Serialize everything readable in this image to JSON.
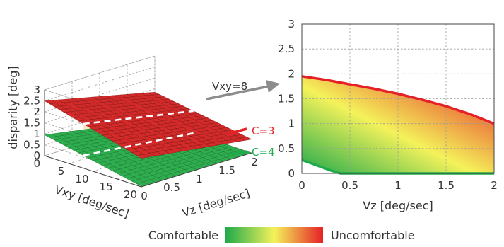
{
  "colors": {
    "comfortable": "#1faa4b",
    "mid": "#f4f25a",
    "uncomfortable": "#e52026",
    "surface_top": "#d42a2a",
    "surface_bottom": "#2fae4f"
  },
  "chart_data": [
    {
      "type": "surface3d",
      "xlabel": "Vz  [deg/sec]",
      "ylabel": "Vxy  [deg/sec]",
      "zlabel": "disparity [deg]",
      "x_ticks": [
        "0",
        "0.5",
        "1",
        "1.5",
        "2"
      ],
      "y_ticks": [
        "0",
        "5",
        "10",
        "15",
        "20"
      ],
      "z_ticks": [
        "0",
        "0.5",
        "1",
        "1.5",
        "2",
        "2.5",
        "3"
      ],
      "xlim": [
        0,
        2
      ],
      "ylim": [
        0,
        20
      ],
      "zlim": [
        0,
        3
      ],
      "grid": true,
      "series": [
        {
          "name": "C=3",
          "color": "#e52026",
          "corners": {
            "vz0_vxy0": 2.5,
            "vz2_vxy0": 1.35,
            "vz0_vxy20": 1.3,
            "vz2_vxy20": 0.62
          }
        },
        {
          "name": "C=4",
          "color": "#1faa4b",
          "corners": {
            "vz0_vxy0": 0.95,
            "vz2_vxy0": 0.08,
            "vz0_vxy20": 0.02,
            "vz2_vxy20": 0.0
          }
        }
      ],
      "slice_label": "Vxy=8"
    },
    {
      "type": "area",
      "xlabel": "Vz  [deg/sec]",
      "ylabel": "",
      "xlim": [
        0,
        2
      ],
      "ylim": [
        0,
        3
      ],
      "x_ticks": [
        "0",
        "0.5",
        "1",
        "1.5",
        "2"
      ],
      "y_ticks": [
        "0",
        "0.5",
        "1",
        "1.5",
        "2",
        "2.5",
        "3"
      ],
      "grid": true,
      "series": [
        {
          "name": "C=3",
          "color": "#e52026",
          "x": [
            0,
            0.25,
            0.5,
            0.75,
            1.0,
            1.25,
            1.5,
            1.75,
            2.0
          ],
          "y": [
            1.95,
            1.88,
            1.79,
            1.7,
            1.6,
            1.48,
            1.35,
            1.19,
            1.0
          ]
        },
        {
          "name": "C=4",
          "color": "#1faa4b",
          "x": [
            0,
            0.1,
            0.2,
            0.3,
            0.4,
            0.5,
            1.0,
            1.5,
            2.0
          ],
          "y": [
            0.27,
            0.2,
            0.13,
            0.06,
            0.0,
            0.0,
            0.0,
            0.0,
            0.0
          ]
        }
      ]
    }
  ],
  "legend": {
    "left_label": "Comfortable",
    "right_label": "Uncomfortable"
  }
}
